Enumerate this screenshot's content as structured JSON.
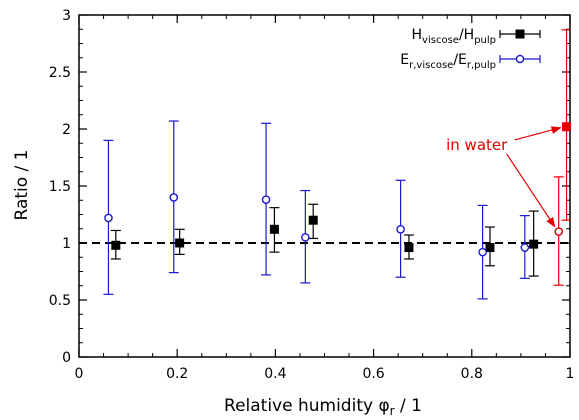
{
  "chart_data": {
    "type": "scatter",
    "title": "",
    "xlabel": "Relative humidity φ",
    "xlabel_sub": "r",
    "xlabel_suffix": " / 1",
    "ylabel": "Ratio / 1",
    "xlim": [
      0,
      1
    ],
    "ylim": [
      0,
      3
    ],
    "x_ticks": [
      "0",
      "0.2",
      "0.4",
      "0.6",
      "0.8",
      "1"
    ],
    "y_ticks": [
      "0",
      "0.5",
      "1",
      "1.5",
      "2",
      "2.5",
      "3"
    ],
    "grid": false,
    "legend_position": "top-right",
    "reference_line": {
      "y": 1,
      "style": "dashed",
      "color": "#000000"
    },
    "series": [
      {
        "name_main": "H",
        "name_sub1": "viscose",
        "name_mid": "/H",
        "name_sub2": "pulp",
        "marker": "filled-square",
        "color": "#000000",
        "errorbar_color": "#000000",
        "points": [
          {
            "x": 0.075,
            "y": 0.98,
            "ylo": 0.86,
            "yhi": 1.11
          },
          {
            "x": 0.205,
            "y": 1.0,
            "ylo": 0.9,
            "yhi": 1.12
          },
          {
            "x": 0.398,
            "y": 1.12,
            "ylo": 0.92,
            "yhi": 1.31
          },
          {
            "x": 0.477,
            "y": 1.2,
            "ylo": 1.04,
            "yhi": 1.34
          },
          {
            "x": 0.672,
            "y": 0.96,
            "ylo": 0.86,
            "yhi": 1.07
          },
          {
            "x": 0.837,
            "y": 0.96,
            "ylo": 0.8,
            "yhi": 1.14
          },
          {
            "x": 0.926,
            "y": 0.99,
            "ylo": 0.71,
            "yhi": 1.28
          }
        ]
      },
      {
        "name_main": "E",
        "name_sub1": "r,viscose",
        "name_mid": "/E",
        "name_sub2": "r,pulp",
        "marker": "open-circle",
        "color": "#1a1acc",
        "errorbar_color": "#1a1acc",
        "points": [
          {
            "x": 0.06,
            "y": 1.22,
            "ylo": 0.55,
            "yhi": 1.9
          },
          {
            "x": 0.193,
            "y": 1.4,
            "ylo": 0.74,
            "yhi": 2.07
          },
          {
            "x": 0.381,
            "y": 1.38,
            "ylo": 0.72,
            "yhi": 2.05
          },
          {
            "x": 0.461,
            "y": 1.05,
            "ylo": 0.65,
            "yhi": 1.46
          },
          {
            "x": 0.655,
            "y": 1.12,
            "ylo": 0.7,
            "yhi": 1.55
          },
          {
            "x": 0.822,
            "y": 0.92,
            "ylo": 0.51,
            "yhi": 1.33
          },
          {
            "x": 0.908,
            "y": 0.96,
            "ylo": 0.69,
            "yhi": 1.24
          }
        ]
      }
    ],
    "water_points": [
      {
        "marker": "filled-square",
        "color": "#e00000",
        "x": 0.993,
        "y": 2.02,
        "ylo": 1.2,
        "yhi": 2.87
      },
      {
        "marker": "open-circle",
        "color": "#e00000",
        "x": 0.977,
        "y": 1.1,
        "ylo": 0.63,
        "yhi": 1.58
      }
    ],
    "annotation": {
      "text": "in water",
      "color": "#e00000",
      "text_x": 0.81,
      "text_y": 1.86
    }
  }
}
